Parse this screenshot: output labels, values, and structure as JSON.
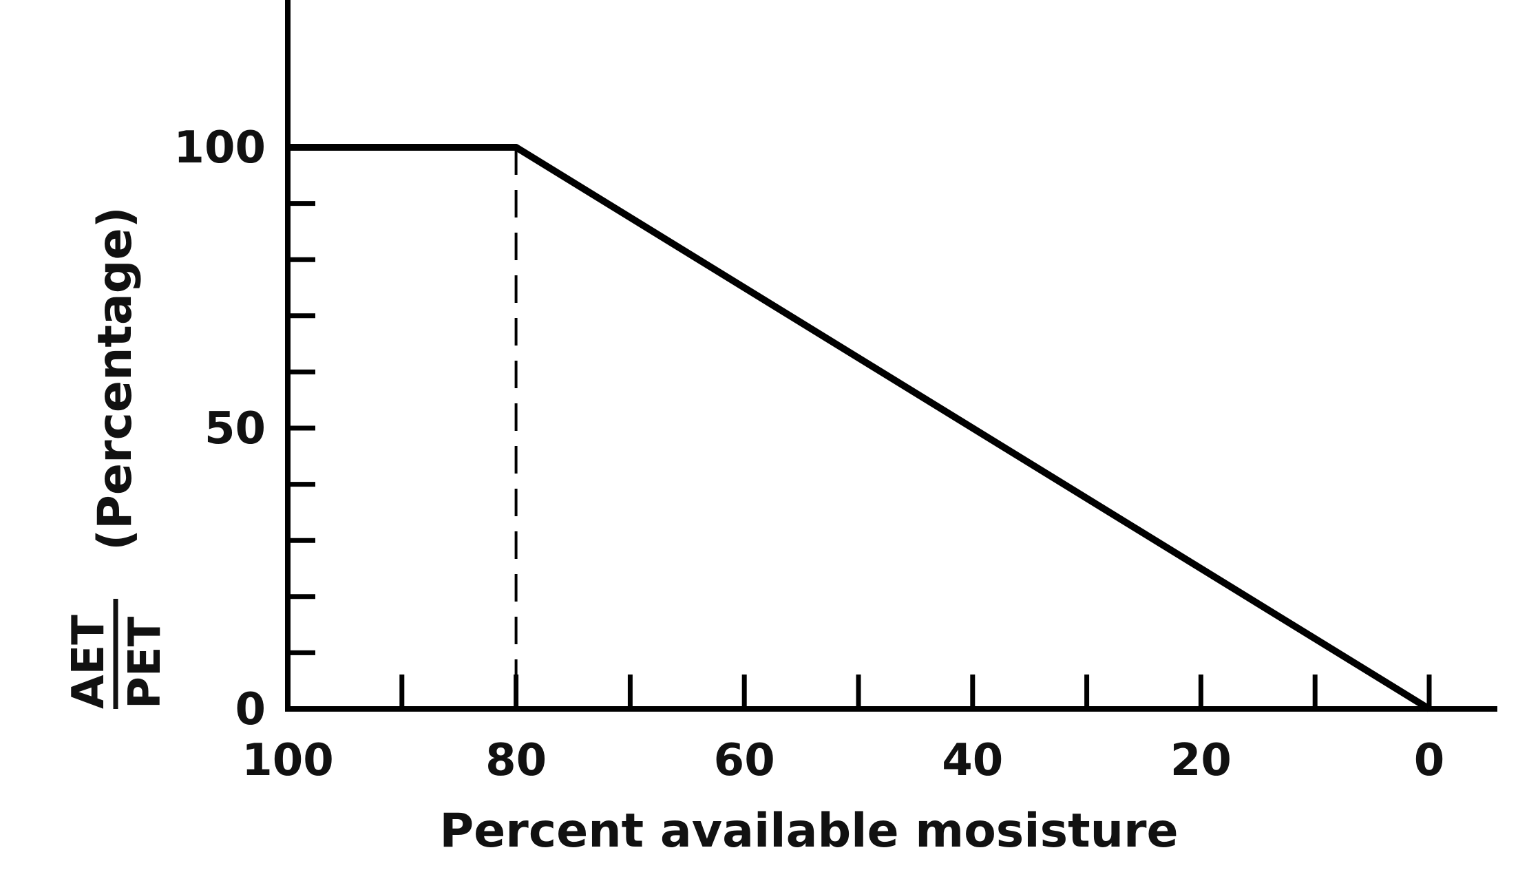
{
  "chart_data": {
    "type": "line",
    "x": [
      100,
      80,
      0
    ],
    "series": [
      {
        "values": [
          100,
          100,
          0
        ]
      }
    ],
    "xlabel": "Percent available mosisture",
    "ylabel": {
      "numerator": "AET",
      "denominator": "PET",
      "suffix": "(Percentage)"
    },
    "x_reversed": true,
    "xlim": [
      100,
      0
    ],
    "ylim": [
      0,
      100
    ],
    "x_ticks": [
      "100",
      "80",
      "60",
      "40",
      "20",
      "0"
    ],
    "x_tick_values": [
      100,
      80,
      60,
      40,
      20,
      0
    ],
    "x_minor_tick_values": [
      90,
      70,
      50,
      30,
      10
    ],
    "y_ticks": [
      "0",
      "50",
      "100"
    ],
    "y_tick_values": [
      0,
      50,
      100
    ],
    "y_minor_tick_values": [
      10,
      20,
      30,
      40,
      60,
      70,
      80,
      90
    ],
    "reference_line": {
      "x": 80,
      "style": "dashed"
    },
    "grid": false,
    "colors": {
      "line": "#000000",
      "axis": "#000000"
    }
  }
}
